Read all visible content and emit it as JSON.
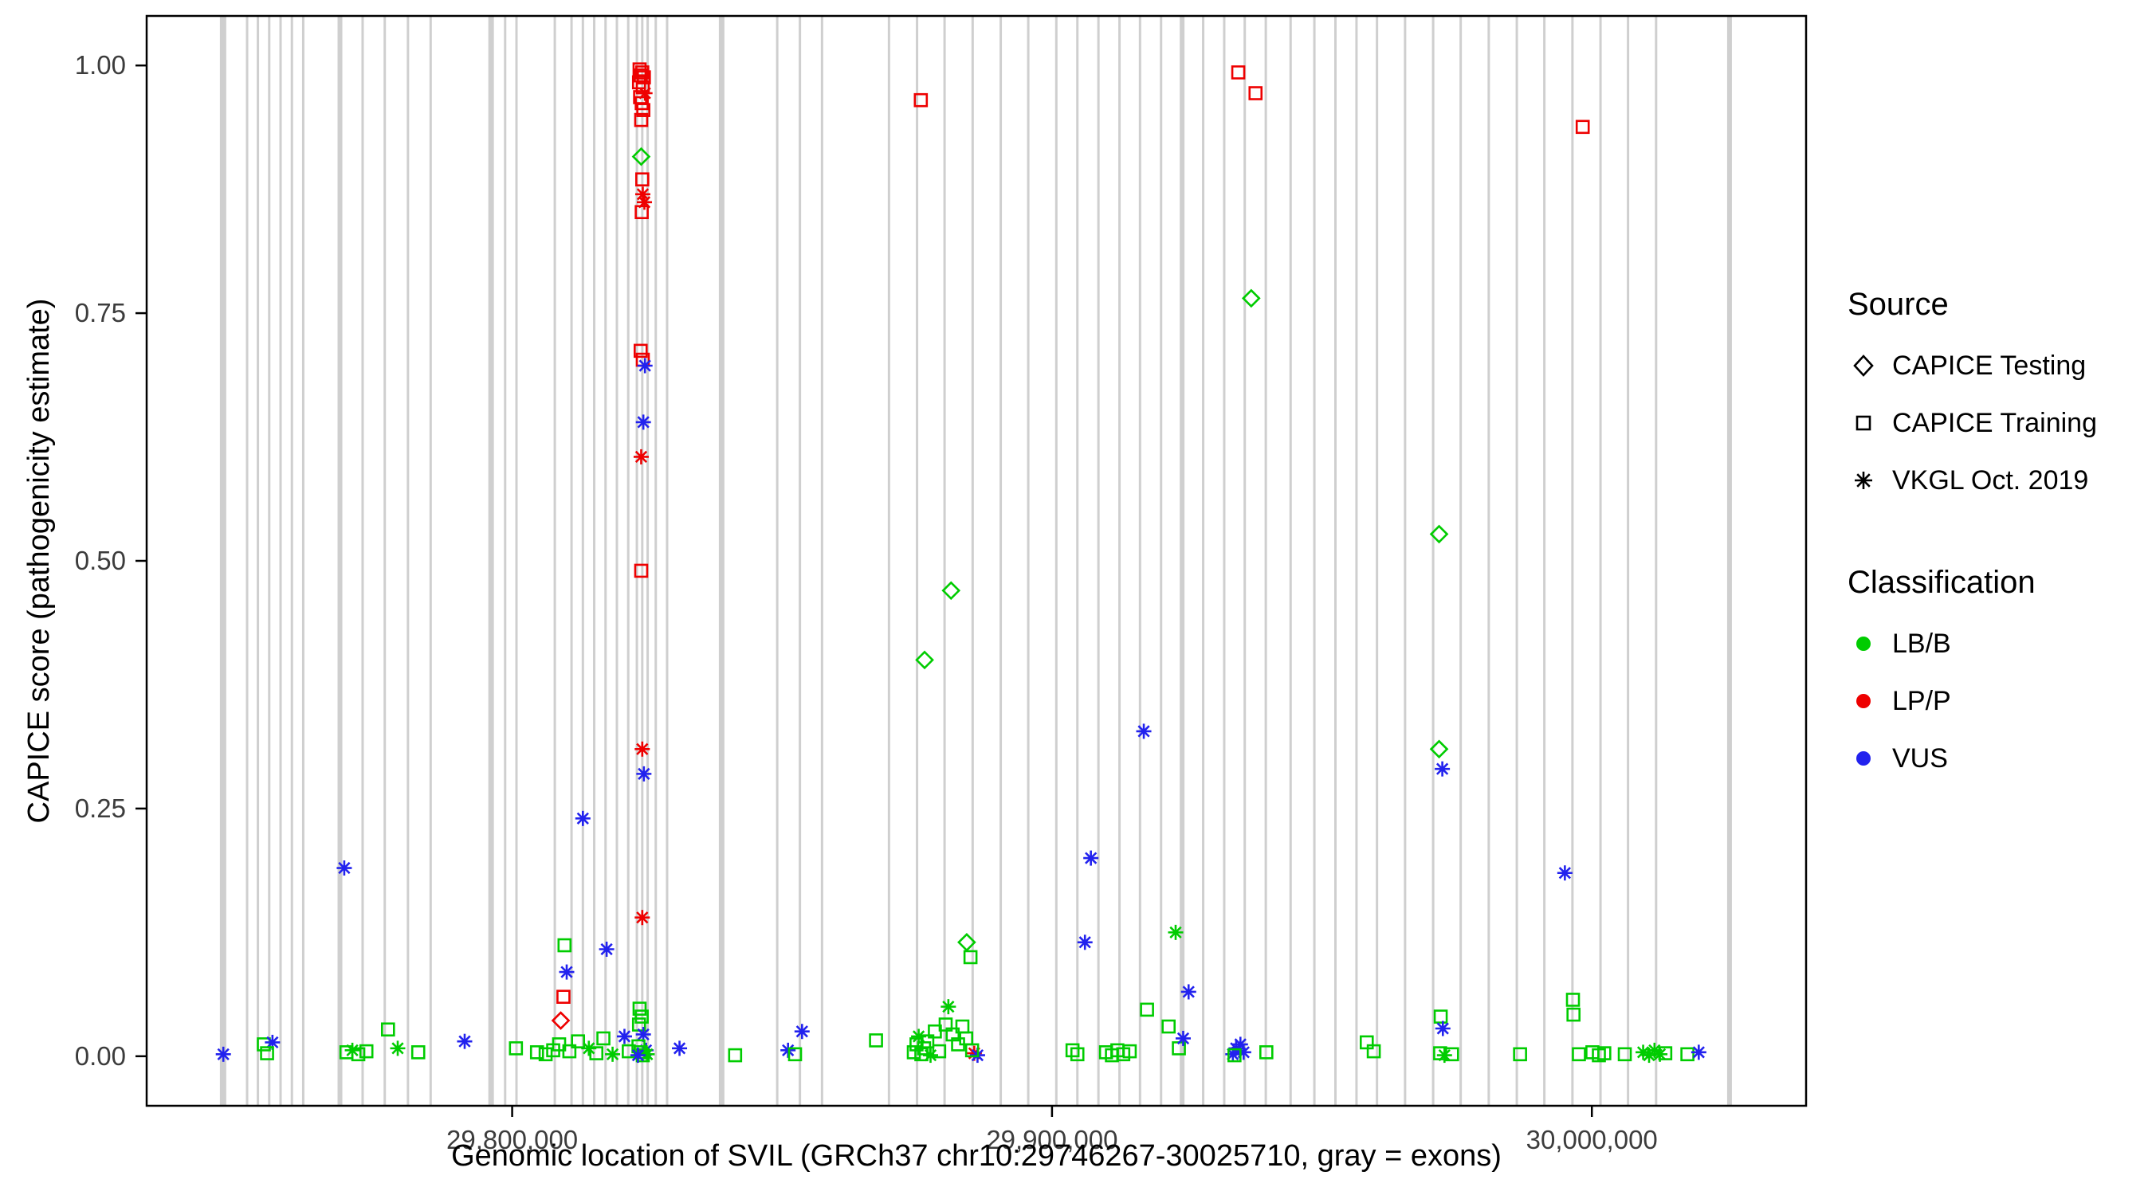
{
  "chart_data": {
    "type": "scatter",
    "title": "",
    "xlabel": "Genomic location of SVIL (GRCh37 chr10:29746267-30025710, gray = exons)",
    "ylabel": "CAPICE score (pathogenicity estimate)",
    "x_range": [
      29732295,
      30039682
    ],
    "y_range": [
      -0.05,
      1.05
    ],
    "x_ticks": {
      "values": [
        29800000,
        29900000,
        30000000
      ],
      "labels": [
        "29,800,000",
        "29,900,000",
        "30,000,000"
      ]
    },
    "y_ticks": {
      "values": [
        0.0,
        0.25,
        0.5,
        0.75,
        1.0
      ],
      "labels": [
        "0.00",
        "0.25",
        "0.50",
        "0.75",
        "1.00"
      ]
    },
    "exon_color": "#CFCFCF",
    "grid": false,
    "legend": {
      "position": "right",
      "source_title": "Source",
      "source_items": [
        {
          "label": "CAPICE Testing",
          "shape": "diamond"
        },
        {
          "label": "CAPICE Training",
          "shape": "square"
        },
        {
          "label": "VKGL Oct. 2019",
          "shape": "asterisk"
        }
      ],
      "classification_title": "Classification",
      "classification_items": [
        {
          "key": "LB",
          "label": "LB/B",
          "color": "#00CC00"
        },
        {
          "key": "LP",
          "label": "LP/P",
          "color": "#EE0000"
        },
        {
          "key": "VUS",
          "label": "VUS",
          "color": "#2222EE"
        }
      ]
    },
    "point_format": [
      "genomic_position",
      "capice_score",
      "shape(S=square,D=diamond,A=asterisk)",
      "classification"
    ],
    "exons": [
      [
        29746450,
        8
      ],
      [
        29750900,
        3
      ],
      [
        29752900,
        3
      ],
      [
        29755000,
        3
      ],
      [
        29757100,
        3
      ],
      [
        29759200,
        3
      ],
      [
        29761300,
        3
      ],
      [
        29768100,
        6
      ],
      [
        29772300,
        3
      ],
      [
        29776400,
        3
      ],
      [
        29780700,
        3
      ],
      [
        29784900,
        3
      ],
      [
        29796100,
        7
      ],
      [
        29798700,
        3
      ],
      [
        29800800,
        3
      ],
      [
        29807900,
        3
      ],
      [
        29811000,
        3
      ],
      [
        29813100,
        3
      ],
      [
        29815200,
        3
      ],
      [
        29817300,
        3
      ],
      [
        29819400,
        3
      ],
      [
        29821500,
        3
      ],
      [
        29823100,
        3
      ],
      [
        29824100,
        3
      ],
      [
        29825100,
        3
      ],
      [
        29826600,
        3
      ],
      [
        29828700,
        3
      ],
      [
        29838800,
        7
      ],
      [
        29849100,
        3
      ],
      [
        29853300,
        3
      ],
      [
        29857400,
        3
      ],
      [
        29869800,
        3
      ],
      [
        29875000,
        3
      ],
      [
        29880100,
        3
      ],
      [
        29885300,
        3
      ],
      [
        29890500,
        3
      ],
      [
        29895600,
        3
      ],
      [
        29900800,
        3
      ],
      [
        29904700,
        3
      ],
      [
        29908600,
        3
      ],
      [
        29912500,
        3
      ],
      [
        29916300,
        3
      ],
      [
        29920200,
        3
      ],
      [
        29924100,
        6
      ],
      [
        29928000,
        3
      ],
      [
        29931900,
        3
      ],
      [
        29935700,
        3
      ],
      [
        29939600,
        3
      ],
      [
        29944200,
        3
      ],
      [
        29948600,
        3
      ],
      [
        29952500,
        3
      ],
      [
        29956400,
        3
      ],
      [
        29960200,
        3
      ],
      [
        29965400,
        3
      ],
      [
        29970600,
        3
      ],
      [
        29975700,
        3
      ],
      [
        29980900,
        3
      ],
      [
        29986100,
        3
      ],
      [
        29991200,
        3
      ],
      [
        29996400,
        3
      ],
      [
        30001600,
        3
      ],
      [
        30006700,
        3
      ],
      [
        30011900,
        3
      ],
      [
        30025500,
        6
      ]
    ],
    "points": [
      [
        29746500,
        0.002,
        "A",
        "VUS"
      ],
      [
        29754000,
        0.012,
        "S",
        "LB"
      ],
      [
        29755600,
        0.014,
        "A",
        "VUS"
      ],
      [
        29754600,
        0.003,
        "S",
        "LB"
      ],
      [
        29768900,
        0.19,
        "A",
        "VUS"
      ],
      [
        29769300,
        0.004,
        "S",
        "LB"
      ],
      [
        29770400,
        0.006,
        "A",
        "LB"
      ],
      [
        29771500,
        0.002,
        "S",
        "LB"
      ],
      [
        29773000,
        0.005,
        "S",
        "LB"
      ],
      [
        29777000,
        0.027,
        "S",
        "LB"
      ],
      [
        29778800,
        0.008,
        "A",
        "LB"
      ],
      [
        29782600,
        0.004,
        "S",
        "LB"
      ],
      [
        29791200,
        0.015,
        "A",
        "VUS"
      ],
      [
        29800700,
        0.008,
        "S",
        "LB"
      ],
      [
        29804600,
        0.004,
        "S",
        "LB"
      ],
      [
        29806200,
        0.002,
        "S",
        "LB"
      ],
      [
        29807600,
        0.006,
        "S",
        "LB"
      ],
      [
        29809700,
        0.112,
        "S",
        "LB"
      ],
      [
        29810100,
        0.085,
        "A",
        "VUS"
      ],
      [
        29809500,
        0.06,
        "S",
        "LP"
      ],
      [
        29809000,
        0.036,
        "D",
        "LP"
      ],
      [
        29808700,
        0.012,
        "S",
        "LB"
      ],
      [
        29810600,
        0.005,
        "S",
        "LB"
      ],
      [
        29813100,
        0.24,
        "A",
        "VUS"
      ],
      [
        29812200,
        0.015,
        "S",
        "LB"
      ],
      [
        29814200,
        0.008,
        "A",
        "LB"
      ],
      [
        29815600,
        0.003,
        "S",
        "LB"
      ],
      [
        29817500,
        0.108,
        "A",
        "VUS"
      ],
      [
        29816900,
        0.018,
        "S",
        "LB"
      ],
      [
        29818600,
        0.002,
        "A",
        "LB"
      ],
      [
        29820800,
        0.02,
        "A",
        "VUS"
      ],
      [
        29821600,
        0.005,
        "S",
        "LB"
      ],
      [
        29823600,
        0.996,
        "S",
        "LP"
      ],
      [
        29824100,
        0.993,
        "S",
        "LP"
      ],
      [
        29823800,
        0.99,
        "S",
        "LP"
      ],
      [
        29824400,
        0.988,
        "S",
        "LP"
      ],
      [
        29823500,
        0.983,
        "S",
        "LP"
      ],
      [
        29824200,
        0.978,
        "S",
        "LP"
      ],
      [
        29824600,
        0.972,
        "A",
        "LP"
      ],
      [
        29823700,
        0.968,
        "S",
        "LP"
      ],
      [
        29824000,
        0.962,
        "S",
        "LP"
      ],
      [
        29824300,
        0.955,
        "S",
        "LP"
      ],
      [
        29823900,
        0.945,
        "S",
        "LP"
      ],
      [
        29823900,
        0.908,
        "D",
        "LB"
      ],
      [
        29824100,
        0.885,
        "S",
        "LP"
      ],
      [
        29824200,
        0.87,
        "A",
        "LP"
      ],
      [
        29824500,
        0.862,
        "A",
        "LP"
      ],
      [
        29824000,
        0.852,
        "S",
        "LP"
      ],
      [
        29823800,
        0.712,
        "S",
        "LP"
      ],
      [
        29824200,
        0.703,
        "S",
        "LP"
      ],
      [
        29824600,
        0.697,
        "A",
        "VUS"
      ],
      [
        29824300,
        0.64,
        "A",
        "VUS"
      ],
      [
        29823900,
        0.605,
        "A",
        "LP"
      ],
      [
        29823900,
        0.49,
        "S",
        "LP"
      ],
      [
        29824100,
        0.31,
        "A",
        "LP"
      ],
      [
        29824400,
        0.285,
        "A",
        "VUS"
      ],
      [
        29824100,
        0.14,
        "A",
        "LP"
      ],
      [
        29823600,
        0.048,
        "S",
        "LB"
      ],
      [
        29824000,
        0.04,
        "S",
        "LB"
      ],
      [
        29823500,
        0.032,
        "S",
        "LB"
      ],
      [
        29824300,
        0.022,
        "A",
        "VUS"
      ],
      [
        29824800,
        0.006,
        "A",
        "VUS"
      ],
      [
        29823400,
        0.01,
        "S",
        "LB"
      ],
      [
        29823800,
        0.004,
        "S",
        "LB"
      ],
      [
        29824200,
        0.001,
        "S",
        "LB"
      ],
      [
        29825000,
        0.002,
        "A",
        "LB"
      ],
      [
        29823300,
        0.001,
        "A",
        "VUS"
      ],
      [
        29831000,
        0.008,
        "A",
        "VUS"
      ],
      [
        29841300,
        0.001,
        "S",
        "LB"
      ],
      [
        29851100,
        0.006,
        "A",
        "VUS"
      ],
      [
        29852400,
        0.002,
        "S",
        "LB"
      ],
      [
        29853700,
        0.025,
        "A",
        "VUS"
      ],
      [
        29867400,
        0.016,
        "S",
        "LB"
      ],
      [
        29874400,
        0.004,
        "S",
        "LB"
      ],
      [
        29874900,
        0.012,
        "S",
        "LB"
      ],
      [
        29875300,
        0.02,
        "A",
        "LB"
      ],
      [
        29875800,
        0.002,
        "S",
        "LB"
      ],
      [
        29876300,
        0.008,
        "S",
        "LB"
      ],
      [
        29876900,
        0.015,
        "S",
        "LB"
      ],
      [
        29877500,
        0.001,
        "A",
        "LB"
      ],
      [
        29878300,
        0.025,
        "S",
        "LB"
      ],
      [
        29879100,
        0.005,
        "S",
        "LB"
      ],
      [
        29875700,
        0.965,
        "S",
        "LP"
      ],
      [
        29876400,
        0.4,
        "D",
        "LB"
      ],
      [
        29881300,
        0.47,
        "D",
        "LB"
      ],
      [
        29880800,
        0.05,
        "A",
        "LB"
      ],
      [
        29880300,
        0.032,
        "S",
        "LB"
      ],
      [
        29881600,
        0.022,
        "S",
        "LB"
      ],
      [
        29882600,
        0.012,
        "S",
        "LB"
      ],
      [
        29883400,
        0.03,
        "S",
        "LB"
      ],
      [
        29884100,
        0.018,
        "S",
        "LB"
      ],
      [
        29884200,
        0.115,
        "D",
        "LB"
      ],
      [
        29884900,
        0.1,
        "S",
        "LB"
      ],
      [
        29885600,
        0.003,
        "A",
        "LP"
      ],
      [
        29886200,
        0.001,
        "A",
        "VUS"
      ],
      [
        29885200,
        0.006,
        "S",
        "LB"
      ],
      [
        29903800,
        0.006,
        "S",
        "LB"
      ],
      [
        29904700,
        0.002,
        "S",
        "LB"
      ],
      [
        29906100,
        0.115,
        "A",
        "VUS"
      ],
      [
        29907200,
        0.2,
        "A",
        "VUS"
      ],
      [
        29910000,
        0.004,
        "S",
        "LB"
      ],
      [
        29911100,
        0.001,
        "S",
        "LB"
      ],
      [
        29912100,
        0.006,
        "S",
        "LB"
      ],
      [
        29913200,
        0.002,
        "S",
        "LB"
      ],
      [
        29914400,
        0.005,
        "S",
        "LB"
      ],
      [
        29917000,
        0.328,
        "A",
        "VUS"
      ],
      [
        29917600,
        0.047,
        "S",
        "LB"
      ],
      [
        29921600,
        0.03,
        "S",
        "LB"
      ],
      [
        29922900,
        0.125,
        "A",
        "LB"
      ],
      [
        29923500,
        0.008,
        "S",
        "LB"
      ],
      [
        29924300,
        0.018,
        "A",
        "VUS"
      ],
      [
        29925300,
        0.065,
        "A",
        "VUS"
      ],
      [
        29933500,
        0.002,
        "A",
        "VUS"
      ],
      [
        29934100,
        0.008,
        "A",
        "VUS"
      ],
      [
        29934900,
        0.012,
        "A",
        "VUS"
      ],
      [
        29935500,
        0.004,
        "A",
        "VUS"
      ],
      [
        29933800,
        0.001,
        "S",
        "LB"
      ],
      [
        29934500,
        0.993,
        "S",
        "LP"
      ],
      [
        29937700,
        0.972,
        "S",
        "LP"
      ],
      [
        29936900,
        0.765,
        "D",
        "LB"
      ],
      [
        29939700,
        0.004,
        "S",
        "LB"
      ],
      [
        29958300,
        0.014,
        "S",
        "LB"
      ],
      [
        29959600,
        0.005,
        "S",
        "LB"
      ],
      [
        29971700,
        0.527,
        "D",
        "LB"
      ],
      [
        29971700,
        0.31,
        "D",
        "LB"
      ],
      [
        29972300,
        0.29,
        "A",
        "VUS"
      ],
      [
        29972000,
        0.04,
        "S",
        "LB"
      ],
      [
        29972400,
        0.028,
        "A",
        "VUS"
      ],
      [
        29971900,
        0.003,
        "S",
        "LB"
      ],
      [
        29972700,
        0.001,
        "A",
        "LB"
      ],
      [
        29974100,
        0.002,
        "S",
        "LB"
      ],
      [
        29986700,
        0.002,
        "S",
        "LB"
      ],
      [
        29995000,
        0.185,
        "A",
        "VUS"
      ],
      [
        29996500,
        0.057,
        "S",
        "LB"
      ],
      [
        29996600,
        0.042,
        "S",
        "LB"
      ],
      [
        29998300,
        0.938,
        "S",
        "LP"
      ],
      [
        29997600,
        0.002,
        "S",
        "LB"
      ],
      [
        30000100,
        0.004,
        "S",
        "LB"
      ],
      [
        30001300,
        0.001,
        "S",
        "LB"
      ],
      [
        30002300,
        0.003,
        "S",
        "LB"
      ],
      [
        30006100,
        0.002,
        "S",
        "LB"
      ],
      [
        30009500,
        0.004,
        "A",
        "LB"
      ],
      [
        30010600,
        0.001,
        "A",
        "LB"
      ],
      [
        30011600,
        0.006,
        "A",
        "LB"
      ],
      [
        30012600,
        0.002,
        "A",
        "LB"
      ],
      [
        30013600,
        0.003,
        "S",
        "LB"
      ],
      [
        30017700,
        0.002,
        "S",
        "LB"
      ],
      [
        30019800,
        0.004,
        "A",
        "VUS"
      ]
    ]
  }
}
